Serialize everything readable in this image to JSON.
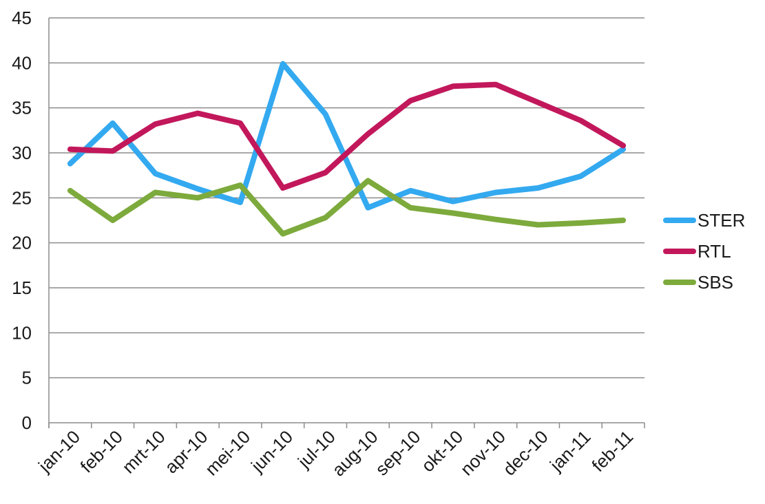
{
  "chart_data": {
    "type": "line",
    "title": "",
    "xlabel": "",
    "ylabel": "",
    "ylim": [
      0,
      45
    ],
    "yticks": [
      0,
      5,
      10,
      15,
      20,
      25,
      30,
      35,
      40,
      45
    ],
    "grid": "horizontal",
    "legend_position": "right",
    "categories": [
      "jan-10",
      "feb-10",
      "mrt-10",
      "apr-10",
      "mei-10",
      "jun-10",
      "jul-10",
      "aug-10",
      "sep-10",
      "okt-10",
      "nov-10",
      "dec-10",
      "jan-11",
      "feb-11"
    ],
    "series": [
      {
        "name": "STER",
        "color": "#33A9F0",
        "values": [
          28.8,
          33.3,
          27.7,
          26.0,
          24.5,
          39.9,
          34.3,
          23.9,
          25.8,
          24.6,
          25.6,
          26.1,
          27.4,
          30.4
        ]
      },
      {
        "name": "RTL",
        "color": "#C2185B",
        "values": [
          30.4,
          30.2,
          33.2,
          34.4,
          33.3,
          26.1,
          27.8,
          32.1,
          35.8,
          37.4,
          37.6,
          35.6,
          33.6,
          30.8
        ]
      },
      {
        "name": "SBS",
        "color": "#7DAA3C",
        "values": [
          25.8,
          22.5,
          25.6,
          25.0,
          26.4,
          21.0,
          22.8,
          26.9,
          23.9,
          23.3,
          22.6,
          22.0,
          22.2,
          22.5
        ]
      }
    ]
  }
}
